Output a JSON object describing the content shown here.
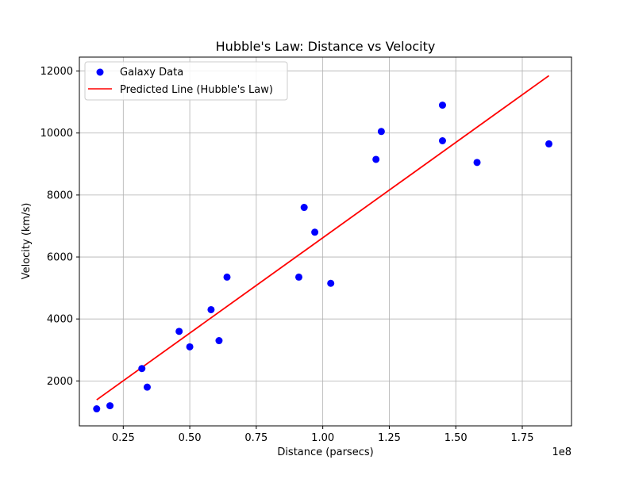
{
  "chart_data": {
    "type": "scatter",
    "title": "Hubble's Law: Distance vs Velocity",
    "xlabel": "Distance (parsecs)",
    "ylabel": "Velocity (km/s)",
    "x_offset_text": "1e8",
    "xlim": [
      0.085,
      1.935
    ],
    "ylim": [
      550,
      12450
    ],
    "x_ticks": [
      0.25,
      0.5,
      0.75,
      1.0,
      1.25,
      1.5,
      1.75
    ],
    "x_tick_labels": [
      "0.25",
      "0.50",
      "0.75",
      "1.00",
      "1.25",
      "1.50",
      "1.75"
    ],
    "y_ticks": [
      2000,
      4000,
      6000,
      8000,
      10000,
      12000
    ],
    "y_tick_labels": [
      "2000",
      "4000",
      "6000",
      "8000",
      "10000",
      "12000"
    ],
    "grid": true,
    "legend_position": "top-left",
    "series": [
      {
        "name": "Galaxy Data",
        "kind": "scatter",
        "color": "#0000ff",
        "x": [
          0.15,
          0.2,
          0.32,
          0.34,
          0.46,
          0.5,
          0.58,
          0.61,
          0.64,
          0.91,
          0.93,
          0.97,
          1.03,
          1.2,
          1.22,
          1.45,
          1.45,
          1.58,
          1.85
        ],
        "y": [
          1100,
          1200,
          2400,
          1800,
          3600,
          3100,
          4300,
          3300,
          5350,
          5350,
          7600,
          6800,
          5150,
          9150,
          10050,
          10900,
          9750,
          9050,
          9650
        ]
      },
      {
        "name": "Predicted Line (Hubble's Law)",
        "kind": "line",
        "color": "#ff0000",
        "x": [
          0.15,
          1.85
        ],
        "y": [
          1390,
          11850
        ]
      }
    ]
  }
}
